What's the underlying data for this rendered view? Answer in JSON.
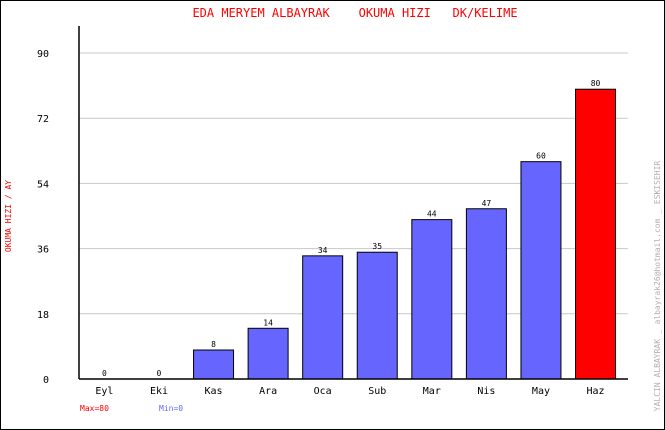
{
  "chart_data": {
    "type": "bar",
    "title": "EDA MERYEM ALBAYRAK    OKUMA HIZI   DK/KELIME",
    "ylabel": "OKUMA HIZI / AY",
    "xlabel": "",
    "categories": [
      "Eyl",
      "Eki",
      "Kas",
      "Ara",
      "Oca",
      "Sub",
      "Mar",
      "Nis",
      "May",
      "Haz"
    ],
    "values": [
      0,
      0,
      8,
      14,
      34,
      35,
      44,
      47,
      60,
      80
    ],
    "ylim": [
      0,
      90
    ],
    "yticks": [
      0,
      18,
      36,
      54,
      72,
      90
    ],
    "grid": true,
    "bar_color": "#6666ff",
    "max_bar_color": "#ff0000",
    "max_label": "Max=80",
    "min_label": "Min=0",
    "max_label_color": "#ff0000",
    "min_label_color": "#6666ff",
    "credit": "YALCIN ALBAYRAK _ albayrak26@hotmail.com _ ESKISEHIR"
  }
}
